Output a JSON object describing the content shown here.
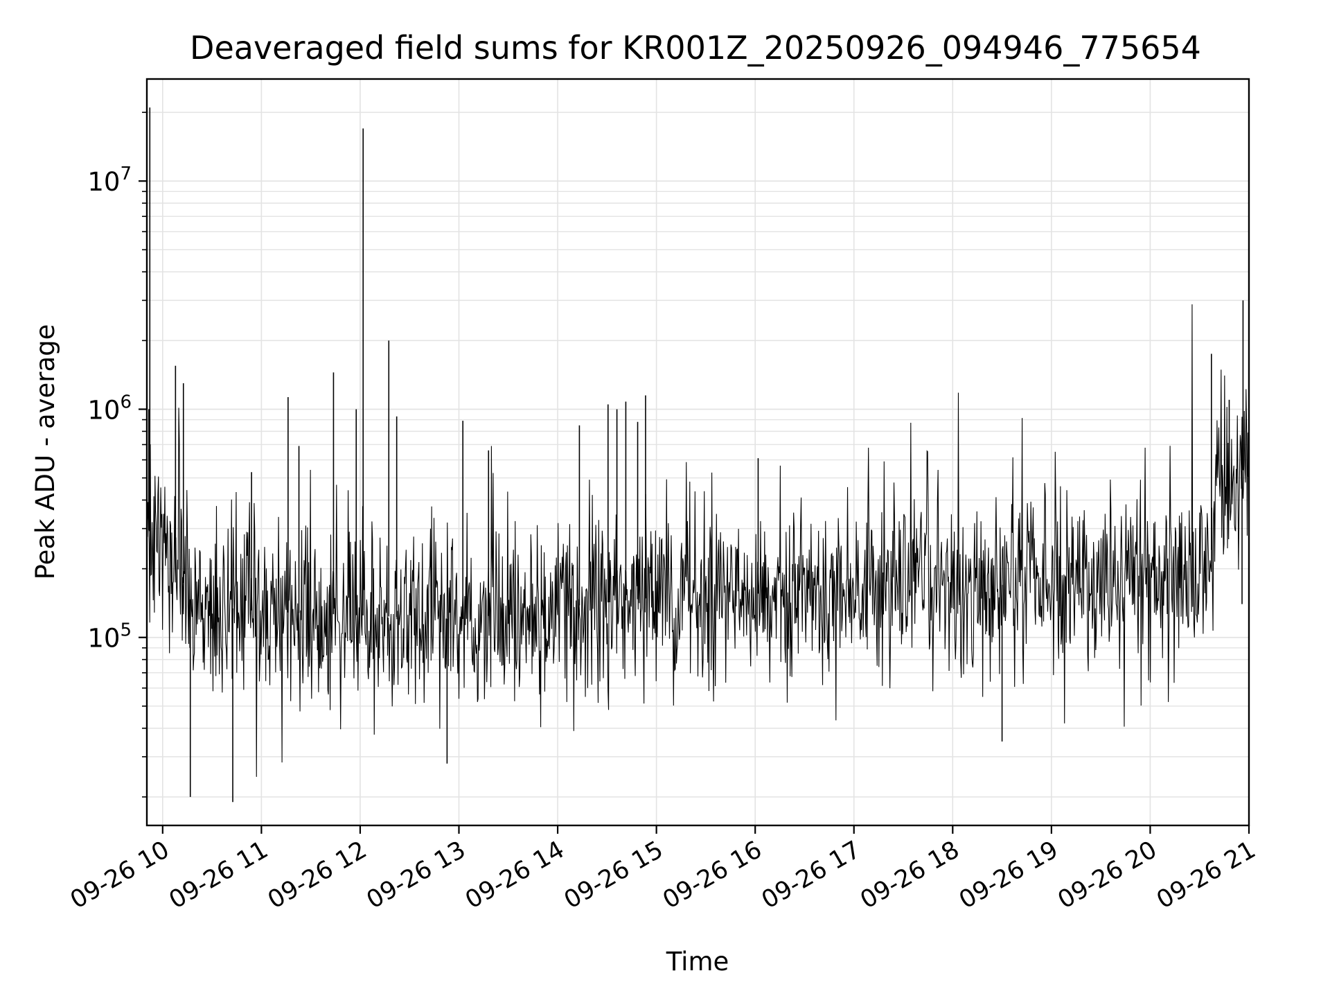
{
  "chart_data": {
    "type": "line",
    "title": "Deaveraged field sums for KR001Z_20250926_094946_775654",
    "xlabel": "Time",
    "ylabel": "Peak ADU - average",
    "yscale": "log",
    "grid": true,
    "line_color": "#000000",
    "grid_color": "#e3e3e3",
    "x_range_hours": [
      9.84,
      21.0
    ],
    "ylim": [
      15000,
      28000000
    ],
    "x_ticks": [
      {
        "hour": 10,
        "label": "09-26 10"
      },
      {
        "hour": 11,
        "label": "09-26 11"
      },
      {
        "hour": 12,
        "label": "09-26 12"
      },
      {
        "hour": 13,
        "label": "09-26 13"
      },
      {
        "hour": 14,
        "label": "09-26 14"
      },
      {
        "hour": 15,
        "label": "09-26 15"
      },
      {
        "hour": 16,
        "label": "09-26 16"
      },
      {
        "hour": 17,
        "label": "09-26 17"
      },
      {
        "hour": 18,
        "label": "09-26 18"
      },
      {
        "hour": 19,
        "label": "09-26 19"
      },
      {
        "hour": 20,
        "label": "09-26 20"
      },
      {
        "hour": 21,
        "label": "09-26 21"
      }
    ],
    "y_ticks": [
      {
        "value": 100000,
        "base": "10",
        "exp": "5"
      },
      {
        "value": 1000000,
        "base": "10",
        "exp": "6"
      },
      {
        "value": 10000000,
        "base": "10",
        "exp": "7"
      }
    ],
    "baseline": [
      {
        "hour": 9.84,
        "value": 300000
      },
      {
        "hour": 10.0,
        "value": 260000
      },
      {
        "hour": 10.15,
        "value": 200000
      },
      {
        "hour": 10.3,
        "value": 140000
      },
      {
        "hour": 11.0,
        "value": 130000
      },
      {
        "hour": 12.0,
        "value": 125000
      },
      {
        "hour": 13.0,
        "value": 120000
      },
      {
        "hour": 14.0,
        "value": 135000
      },
      {
        "hour": 15.0,
        "value": 150000
      },
      {
        "hour": 16.0,
        "value": 155000
      },
      {
        "hour": 17.0,
        "value": 175000
      },
      {
        "hour": 18.0,
        "value": 165000
      },
      {
        "hour": 19.0,
        "value": 175000
      },
      {
        "hour": 20.0,
        "value": 185000
      },
      {
        "hour": 20.6,
        "value": 190000
      },
      {
        "hour": 20.68,
        "value": 500000
      },
      {
        "hour": 21.0,
        "value": 550000
      }
    ],
    "spikes": [
      {
        "hour": 9.87,
        "value": 21000000
      },
      {
        "hour": 9.86,
        "value": 1000000
      },
      {
        "hour": 10.13,
        "value": 1550000
      },
      {
        "hour": 10.21,
        "value": 1300000
      },
      {
        "hour": 10.28,
        "value": 20000
      },
      {
        "hour": 10.71,
        "value": 19000
      },
      {
        "hour": 10.9,
        "value": 530000
      },
      {
        "hour": 11.27,
        "value": 1130000
      },
      {
        "hour": 11.38,
        "value": 690000
      },
      {
        "hour": 11.73,
        "value": 1450000
      },
      {
        "hour": 11.96,
        "value": 1000000
      },
      {
        "hour": 12.03,
        "value": 17000000
      },
      {
        "hour": 12.29,
        "value": 2000000
      },
      {
        "hour": 12.37,
        "value": 930000
      },
      {
        "hour": 12.88,
        "value": 28000
      },
      {
        "hour": 13.04,
        "value": 890000
      },
      {
        "hour": 13.3,
        "value": 660000
      },
      {
        "hour": 14.22,
        "value": 850000
      },
      {
        "hour": 14.51,
        "value": 1050000
      },
      {
        "hour": 14.6,
        "value": 1000000
      },
      {
        "hour": 14.69,
        "value": 1080000
      },
      {
        "hour": 14.81,
        "value": 880000
      },
      {
        "hour": 14.89,
        "value": 1150000
      },
      {
        "hour": 16.03,
        "value": 610000
      },
      {
        "hour": 18.5,
        "value": 35000
      },
      {
        "hour": 20.62,
        "value": 1750000
      },
      {
        "hour": 20.8,
        "value": 1100000
      },
      {
        "hour": 20.94,
        "value": 3000000
      },
      {
        "hour": 20.93,
        "value": 140000
      }
    ]
  }
}
